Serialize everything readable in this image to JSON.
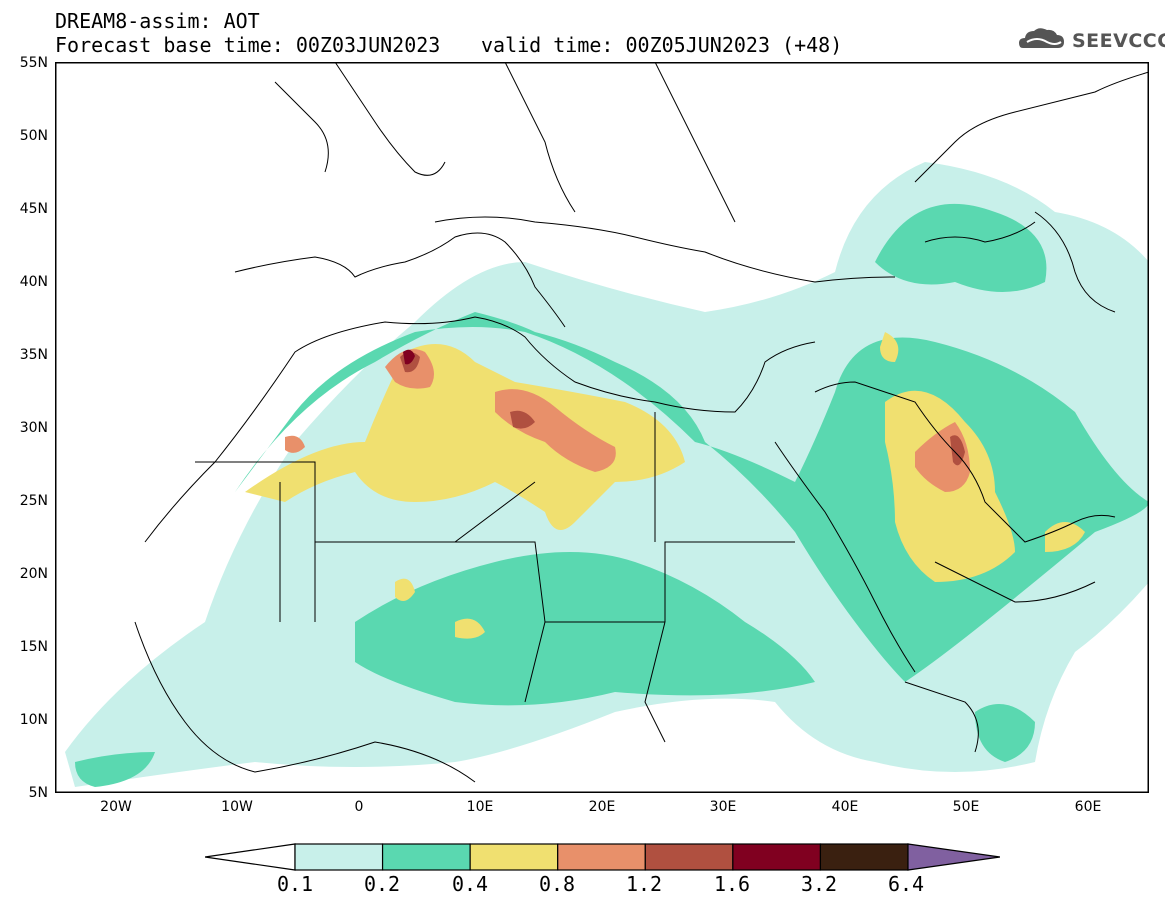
{
  "title": {
    "line1": "DREAM8-assim: AOT",
    "line2": "Forecast base time: 00Z03JUN2023",
    "valid": "valid time: 00Z05JUN2023 (+48)"
  },
  "logo": {
    "text": "SEEVCCC",
    "icon": "cloud-icon"
  },
  "map": {
    "lon_range": [
      -25,
      65
    ],
    "lat_range": [
      5,
      55
    ],
    "lat_labels": [
      "55N",
      "50N",
      "45N",
      "40N",
      "35N",
      "30N",
      "25N",
      "20N",
      "15N",
      "10N",
      "5N"
    ],
    "lon_labels": [
      "20W",
      "10W",
      "0",
      "10E",
      "20E",
      "30E",
      "40E",
      "50E",
      "60E"
    ]
  },
  "colorbar": {
    "levels": [
      "0.1",
      "0.2",
      "0.4",
      "0.8",
      "1.2",
      "1.6",
      "3.2",
      "6.4"
    ],
    "colors": [
      "#c8f0ea",
      "#5ad8b0",
      "#f0e070",
      "#e8906a",
      "#b05040",
      "#800020",
      "#3a2010",
      "#8060a0"
    ]
  }
}
